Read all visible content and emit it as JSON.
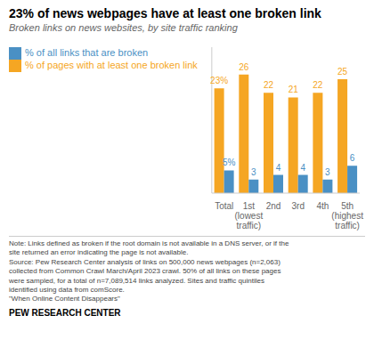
{
  "chart_data": {
    "type": "bar",
    "title": "23% of news webpages have at least one broken link",
    "subtitle": "Broken links on news websites, by site traffic ranking",
    "categories": [
      "Total",
      "1st\n(lowest\ntraffic)",
      "2nd",
      "3rd",
      "4th",
      "5th\n(highest\ntraffic)"
    ],
    "series": [
      {
        "name": "% of pages with at least one broken link",
        "color": "#F5A623",
        "values": [
          23,
          26,
          22,
          21,
          22,
          25
        ],
        "value_labels": [
          "23%",
          "26",
          "22",
          "21",
          "22",
          "25"
        ]
      },
      {
        "name": "% of all links that are broken",
        "color": "#4A90C4",
        "values": [
          5,
          3,
          4,
          4,
          3,
          6
        ],
        "value_labels": [
          "5%",
          "3",
          "4",
          "4",
          "3",
          "6"
        ]
      }
    ],
    "ylim": [
      0,
      32
    ],
    "data_labels": true,
    "tick_labels": "x",
    "annotations": [
      "Note: Links defined as broken if the root domain is not available in a DNS server, or if the\nsite returned an error indicating the page is not available.\nSource: Pew Research Center analysis of links on 500,000 news webpages (n=2,063)\ncollected from Common Crawl March/April 2023 crawl. 50% of all links on these pages\nwere sampled, for a total of n=7,089,514 links analyzed. Sites and traffic quintiles\nidentified using data from comScore.\n\"When Online Content Disappears\"",
      "PEW RESEARCH CENTER"
    ]
  }
}
